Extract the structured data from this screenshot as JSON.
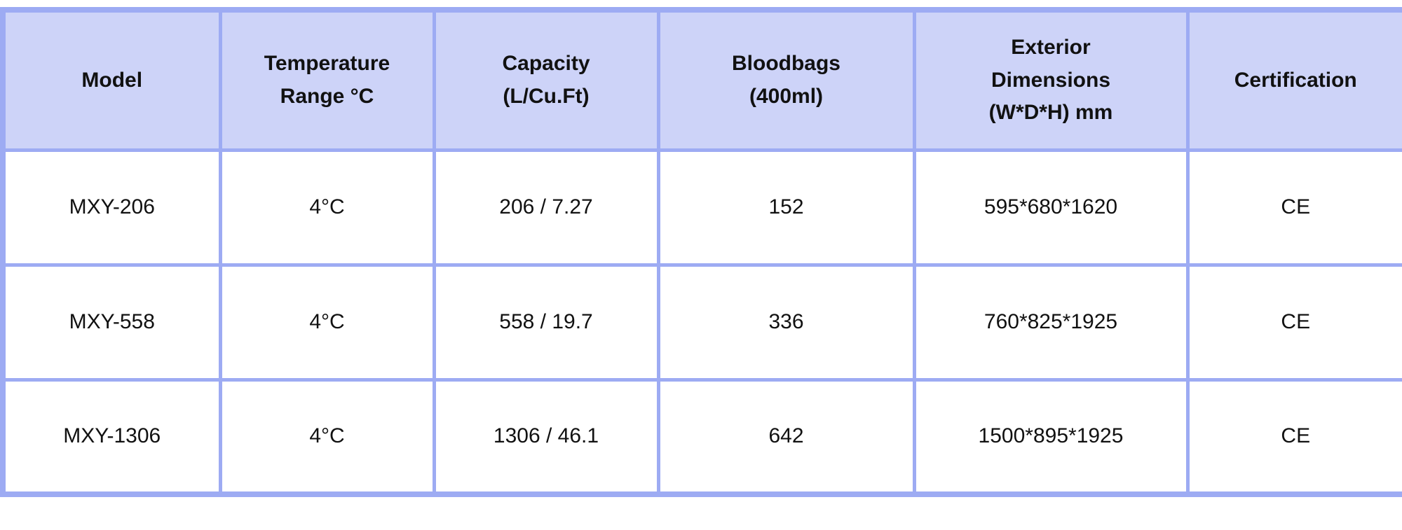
{
  "table": {
    "title": "product-specifications",
    "colors": {
      "header_bg": "#cdd3f8",
      "border": "#9dabf3",
      "body_bg": "#ffffff",
      "text": "#111111"
    },
    "columns": [
      {
        "label": "Model",
        "lines": [
          "Model"
        ]
      },
      {
        "label": "Temperature Range °C",
        "lines": [
          "Temperature",
          "Range °C"
        ]
      },
      {
        "label": "Capacity (L/Cu.Ft)",
        "lines": [
          "Capacity",
          "(L/Cu.Ft)"
        ]
      },
      {
        "label": "Bloodbags (400ml)",
        "lines": [
          "Bloodbags",
          "(400ml)"
        ]
      },
      {
        "label": "Exterior Dimensions (W*D*H) mm",
        "lines": [
          "Exterior",
          "Dimensions",
          "(W*D*H) mm"
        ]
      },
      {
        "label": "Certification",
        "lines": [
          "Certification"
        ]
      }
    ],
    "rows": [
      [
        "MXY-206",
        "4°C",
        "206 / 7.27",
        "152",
        "595*680*1620",
        "CE"
      ],
      [
        "MXY-558",
        "4°C",
        "558 / 19.7",
        "336",
        "760*825*1925",
        "CE"
      ],
      [
        "MXY-1306",
        "4°C",
        "1306 / 46.1",
        "642",
        "1500*895*1925",
        "CE"
      ]
    ]
  }
}
